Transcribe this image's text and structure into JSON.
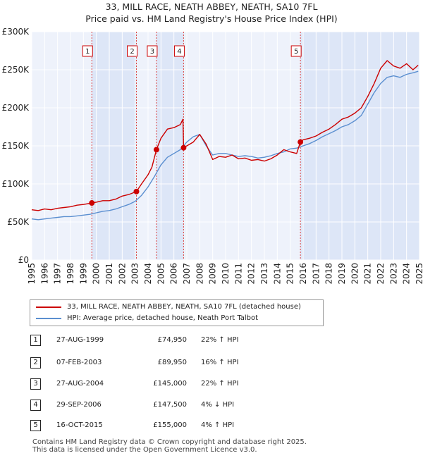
{
  "title_line1": "33, MILL RACE, NEATH ABBEY, NEATH, SA10 7FL",
  "title_line2": "Price paid vs. HM Land Registry's House Price Index (HPI)",
  "colors": {
    "property": "#cc0000",
    "hpi": "#5b8fd0",
    "shade": "#dde6f7",
    "grid": "#ffffff"
  },
  "legend": {
    "property": "33, MILL RACE, NEATH ABBEY, NEATH, SA10 7FL (detached house)",
    "hpi": "HPI: Average price, detached house, Neath Port Talbot"
  },
  "transactions": [
    {
      "num": "1",
      "date": "27-AUG-1999",
      "price": "£74,950",
      "hpi": "22% ↑ HPI"
    },
    {
      "num": "2",
      "date": "07-FEB-2003",
      "price": "£89,950",
      "hpi": "16% ↑ HPI"
    },
    {
      "num": "3",
      "date": "27-AUG-2004",
      "price": "£145,000",
      "hpi": "22% ↑ HPI"
    },
    {
      "num": "4",
      "date": "29-SEP-2006",
      "price": "£147,500",
      "hpi": "4% ↓ HPI"
    },
    {
      "num": "5",
      "date": "16-OCT-2015",
      "price": "£155,000",
      "hpi": "4% ↑ HPI"
    }
  ],
  "footer": {
    "line1": "Contains HM Land Registry data © Crown copyright and database right 2025.",
    "line2": "This data is licensed under the Open Government Licence v3.0."
  },
  "chart_data": {
    "type": "line",
    "title": "33, MILL RACE, NEATH ABBEY, NEATH, SA10 7FL",
    "subtitle": "Price paid vs. HM Land Registry's House Price Index (HPI)",
    "xlim": [
      1995,
      2025
    ],
    "ylim": [
      0,
      300000
    ],
    "x_ticks": [
      1995,
      1996,
      1997,
      1998,
      1999,
      2000,
      2001,
      2002,
      2003,
      2004,
      2005,
      2006,
      2007,
      2008,
      2009,
      2010,
      2011,
      2012,
      2013,
      2014,
      2015,
      2016,
      2017,
      2018,
      2019,
      2020,
      2021,
      2022,
      2023,
      2024,
      2025
    ],
    "y_ticks": [
      {
        "value": 0,
        "label": "£0"
      },
      {
        "value": 50000,
        "label": "£50K"
      },
      {
        "value": 100000,
        "label": "£100K"
      },
      {
        "value": 150000,
        "label": "£150K"
      },
      {
        "value": 200000,
        "label": "£200K"
      },
      {
        "value": 250000,
        "label": "£250K"
      },
      {
        "value": 300000,
        "label": "£300K"
      }
    ],
    "shaded_ranges": [
      [
        1999.65,
        2003.1
      ],
      [
        2004.65,
        2006.75
      ],
      [
        2015.79,
        2025
      ]
    ],
    "sales": [
      {
        "label": "1",
        "x": 1999.65,
        "y": 74950
      },
      {
        "label": "2",
        "x": 2003.1,
        "y": 89950
      },
      {
        "label": "3",
        "x": 2004.65,
        "y": 145000
      },
      {
        "label": "4",
        "x": 2006.75,
        "y": 147500
      },
      {
        "label": "5",
        "x": 2015.79,
        "y": 155000
      }
    ],
    "series": [
      {
        "name": "33, MILL RACE, NEATH ABBEY, NEATH, SA10 7FL (detached house)",
        "color": "#cc0000",
        "x": [
          1995,
          1995.5,
          1996,
          1996.5,
          1997,
          1997.5,
          1998,
          1998.5,
          1999,
          1999.65,
          2000,
          2000.5,
          2001,
          2001.5,
          2002,
          2002.5,
          2003.1,
          2003.5,
          2004,
          2004.3,
          2004.65,
          2005,
          2005.5,
          2006,
          2006.5,
          2006.7,
          2006.75,
          2007,
          2007.5,
          2008,
          2008.5,
          2009,
          2009.5,
          2010,
          2010.5,
          2011,
          2011.5,
          2012,
          2012.5,
          2013,
          2013.5,
          2014,
          2014.5,
          2015,
          2015.5,
          2015.79,
          2016,
          2016.5,
          2017,
          2017.5,
          2018,
          2018.5,
          2019,
          2019.5,
          2020,
          2020.5,
          2021,
          2021.5,
          2022,
          2022.5,
          2023,
          2023.5,
          2024,
          2024.5,
          2024.9
        ],
        "y": [
          66000,
          65000,
          67000,
          66000,
          68000,
          69000,
          70000,
          72000,
          73000,
          74950,
          76000,
          78000,
          78000,
          80000,
          84000,
          86000,
          89950,
          100000,
          112000,
          122000,
          145000,
          160000,
          172000,
          174000,
          178000,
          185000,
          147500,
          150000,
          155000,
          165000,
          152000,
          132000,
          136000,
          135000,
          138000,
          133000,
          134000,
          131000,
          132000,
          130000,
          133000,
          138000,
          145000,
          142000,
          140000,
          155000,
          158000,
          160000,
          163000,
          168000,
          172000,
          178000,
          185000,
          188000,
          193000,
          200000,
          215000,
          232000,
          252000,
          262000,
          255000,
          252000,
          258000,
          250000,
          256000
        ]
      },
      {
        "name": "HPI: Average price, detached house, Neath Port Talbot",
        "color": "#5b8fd0",
        "x": [
          1995,
          1995.5,
          1996,
          1996.5,
          1997,
          1997.5,
          1998,
          1998.5,
          1999,
          1999.5,
          2000,
          2000.5,
          2001,
          2001.5,
          2002,
          2002.5,
          2003,
          2003.5,
          2004,
          2004.5,
          2005,
          2005.5,
          2006,
          2006.5,
          2007,
          2007.5,
          2008,
          2008.5,
          2009,
          2009.5,
          2010,
          2010.5,
          2011,
          2011.5,
          2012,
          2012.5,
          2013,
          2013.5,
          2014,
          2014.5,
          2015,
          2015.5,
          2016,
          2016.5,
          2017,
          2017.5,
          2018,
          2018.5,
          2019,
          2019.5,
          2020,
          2020.5,
          2021,
          2021.5,
          2022,
          2022.5,
          2023,
          2023.5,
          2024,
          2024.5,
          2024.9
        ],
        "y": [
          54000,
          53000,
          54000,
          55000,
          56000,
          57000,
          57000,
          58000,
          59000,
          60000,
          62000,
          64000,
          65000,
          67000,
          70000,
          73000,
          77000,
          85000,
          96000,
          110000,
          125000,
          135000,
          140000,
          145000,
          155000,
          162000,
          165000,
          150000,
          138000,
          140000,
          140000,
          138000,
          136000,
          137000,
          136000,
          134000,
          135000,
          137000,
          140000,
          142000,
          146000,
          147000,
          150000,
          153000,
          157000,
          162000,
          166000,
          170000,
          175000,
          178000,
          183000,
          190000,
          205000,
          220000,
          232000,
          240000,
          242000,
          240000,
          244000,
          246000,
          248000
        ]
      }
    ]
  }
}
